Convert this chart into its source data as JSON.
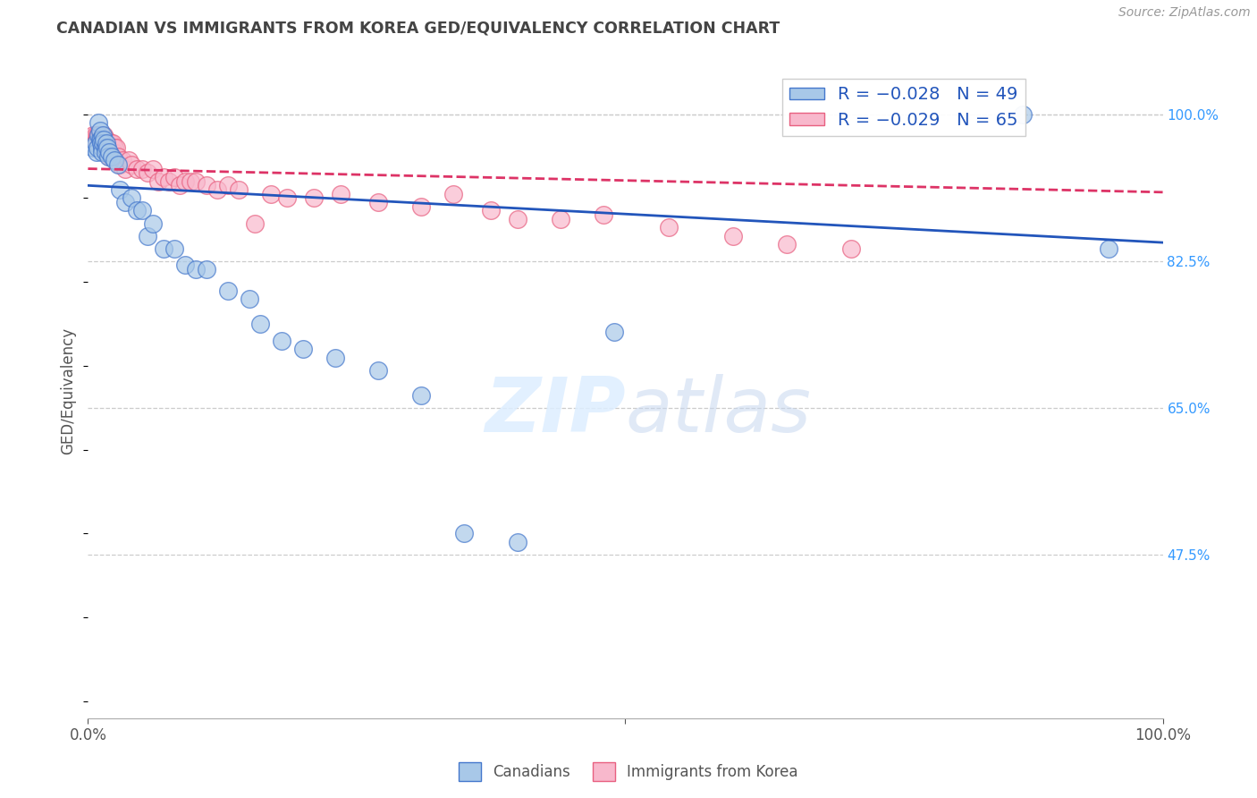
{
  "title": "CANADIAN VS IMMIGRANTS FROM KOREA GED/EQUIVALENCY CORRELATION CHART",
  "source": "Source: ZipAtlas.com",
  "ylabel": "GED/Equivalency",
  "xmin": 0.0,
  "xmax": 1.0,
  "ymin": 0.28,
  "ymax": 1.06,
  "ytick_vals": [
    0.475,
    0.65,
    0.825,
    1.0
  ],
  "ytick_labels": [
    "47.5%",
    "65.0%",
    "82.5%",
    "100.0%"
  ],
  "canadians_color": "#a8c8e8",
  "canada_edge_color": "#4477cc",
  "korea_color": "#f8b8cc",
  "korea_edge_color": "#e86080",
  "trendline_canadian_color": "#2255bb",
  "trendline_korea_color": "#dd3366",
  "background_color": "#ffffff",
  "grid_color": "#cccccc",
  "title_color": "#444444",
  "right_axis_color": "#3399ff",
  "canadians_x": [
    0.005,
    0.007,
    0.008,
    0.009,
    0.01,
    0.01,
    0.011,
    0.011,
    0.012,
    0.012,
    0.013,
    0.013,
    0.014,
    0.014,
    0.015,
    0.016,
    0.016,
    0.017,
    0.018,
    0.019,
    0.02,
    0.022,
    0.025,
    0.028,
    0.03,
    0.035,
    0.04,
    0.045,
    0.05,
    0.055,
    0.06,
    0.07,
    0.08,
    0.09,
    0.1,
    0.11,
    0.13,
    0.15,
    0.16,
    0.18,
    0.2,
    0.23,
    0.27,
    0.31,
    0.35,
    0.4,
    0.49,
    0.87,
    0.95
  ],
  "canadians_y": [
    0.96,
    0.965,
    0.955,
    0.96,
    0.975,
    0.99,
    0.98,
    0.97,
    0.97,
    0.965,
    0.96,
    0.955,
    0.975,
    0.965,
    0.97,
    0.96,
    0.955,
    0.965,
    0.96,
    0.95,
    0.955,
    0.95,
    0.945,
    0.94,
    0.91,
    0.895,
    0.9,
    0.885,
    0.885,
    0.855,
    0.87,
    0.84,
    0.84,
    0.82,
    0.815,
    0.815,
    0.79,
    0.78,
    0.75,
    0.73,
    0.72,
    0.71,
    0.695,
    0.665,
    0.5,
    0.49,
    0.74,
    1.0,
    0.84
  ],
  "korea_x": [
    0.005,
    0.006,
    0.007,
    0.008,
    0.009,
    0.01,
    0.01,
    0.011,
    0.011,
    0.012,
    0.012,
    0.013,
    0.013,
    0.014,
    0.015,
    0.015,
    0.016,
    0.017,
    0.018,
    0.019,
    0.02,
    0.021,
    0.022,
    0.023,
    0.024,
    0.025,
    0.026,
    0.028,
    0.03,
    0.032,
    0.035,
    0.038,
    0.04,
    0.045,
    0.05,
    0.055,
    0.06,
    0.065,
    0.07,
    0.075,
    0.08,
    0.085,
    0.09,
    0.095,
    0.1,
    0.11,
    0.12,
    0.13,
    0.14,
    0.155,
    0.17,
    0.185,
    0.21,
    0.235,
    0.27,
    0.31,
    0.34,
    0.375,
    0.4,
    0.44,
    0.48,
    0.54,
    0.6,
    0.65,
    0.71
  ],
  "korea_y": [
    0.975,
    0.97,
    0.975,
    0.97,
    0.975,
    0.975,
    0.965,
    0.975,
    0.965,
    0.97,
    0.965,
    0.975,
    0.96,
    0.96,
    0.975,
    0.97,
    0.965,
    0.97,
    0.96,
    0.96,
    0.95,
    0.965,
    0.955,
    0.965,
    0.955,
    0.96,
    0.96,
    0.95,
    0.94,
    0.945,
    0.935,
    0.945,
    0.94,
    0.935,
    0.935,
    0.93,
    0.935,
    0.92,
    0.925,
    0.92,
    0.925,
    0.915,
    0.92,
    0.92,
    0.92,
    0.915,
    0.91,
    0.915,
    0.91,
    0.87,
    0.905,
    0.9,
    0.9,
    0.905,
    0.895,
    0.89,
    0.905,
    0.885,
    0.875,
    0.875,
    0.88,
    0.865,
    0.855,
    0.845,
    0.84
  ]
}
